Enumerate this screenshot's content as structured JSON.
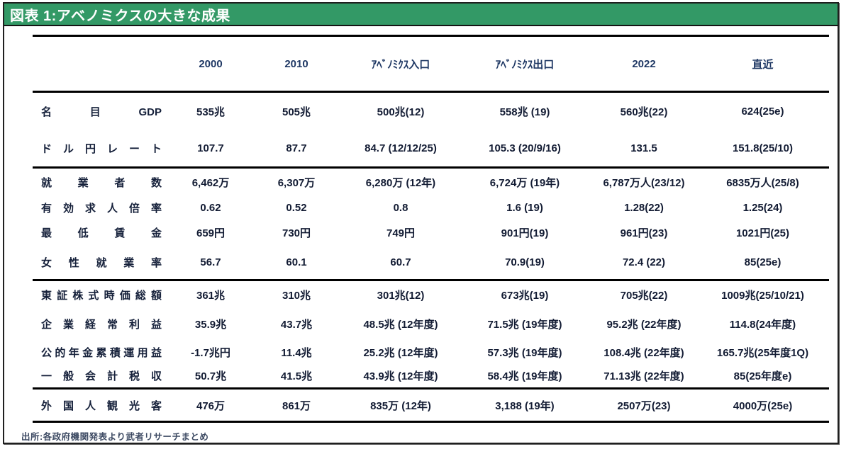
{
  "title": "図表 1:アベノミクスの大きな成果",
  "source": "出所:各政府機関発表より武者リサーチまとめ",
  "colors": {
    "title_bar_bg": "#339966",
    "title_text": "#ffffff",
    "header_text": "#1f3864",
    "body_text": "#121b33",
    "rule": "#000000"
  },
  "chart_data": {
    "type": "table",
    "title": "図表 1:アベノミクスの大きな成果",
    "columns": [
      "2000",
      "2010",
      "ｱﾍﾞﾉﾐｸｽ入口",
      "ｱﾍﾞﾉﾐｸｽ出口",
      "2022",
      "直近"
    ],
    "groups": [
      {
        "rows": [
          {
            "label": "名 目 GDP",
            "values": [
              "535兆",
              "505兆",
              "500兆(12)",
              "558兆 (19)",
              "560兆(22)",
              "624(25e)"
            ]
          },
          {
            "label": "ド ル 円 レ ー ト",
            "values": [
              "107.7",
              "87.7",
              "84.7 (12/12/25)",
              "105.3 (20/9/16)",
              "131.5",
              "151.8(25/10)"
            ]
          }
        ]
      },
      {
        "rows": [
          {
            "label": "就 業 者 数",
            "values": [
              "6,462万",
              "6,307万",
              "6,280万 (12年)",
              "6,724万 (19年)",
              "6,787万人(23/12)",
              "6835万人(25/8)"
            ]
          },
          {
            "label": "有 効 求 人 倍 率",
            "values": [
              "0.62",
              "0.52",
              "0.8",
              "1.6 (19)",
              "1.28(22)",
              "1.25(24)"
            ]
          },
          {
            "label": "最 低 賃 金",
            "values": [
              "659円",
              "730円",
              "749円",
              "901円(19)",
              "961円(23)",
              "1021円(25)"
            ]
          },
          {
            "label": "女 性 就 業 率",
            "values": [
              "56.7",
              "60.1",
              "60.7",
              "70.9(19)",
              "72.4 (22)",
              "85(25e)"
            ]
          }
        ]
      },
      {
        "rows": [
          {
            "label": "東証株式時価総額",
            "values": [
              "361兆",
              "310兆",
              "301兆(12)",
              "673兆(19)",
              "705兆(22)",
              "1009兆(25/10/21)"
            ]
          },
          {
            "label": "企 業 経 常 利 益",
            "values": [
              "35.9兆",
              "43.7兆",
              "48.5兆 (12年度)",
              "71.5兆 (19年度)",
              "95.2兆 (22年度)",
              "114.8(24年度)"
            ]
          },
          {
            "label": "公的年金累積運用益",
            "values": [
              "-1.7兆円",
              "11.4兆",
              "25.2兆 (12年度)",
              "57.3兆 (19年度)",
              "108.4兆 (22年度)",
              "165.7兆(25年度1Q)"
            ]
          },
          {
            "label": "一 般 会 計 税 収",
            "values": [
              "50.7兆",
              "41.5兆",
              "43.9兆 (12年度)",
              "58.4兆 (19年度)",
              "71.13兆 (22年度)",
              "85(25年度e)"
            ]
          }
        ]
      },
      {
        "rows": [
          {
            "label": "外 国 人 観 光 客",
            "values": [
              "476万",
              "861万",
              "835万 (12年)",
              "3,188 (19年)",
              "2507万(23)",
              "4000万(25e)"
            ]
          }
        ]
      }
    ],
    "source": "出所:各政府機関発表より武者リサーチまとめ"
  }
}
